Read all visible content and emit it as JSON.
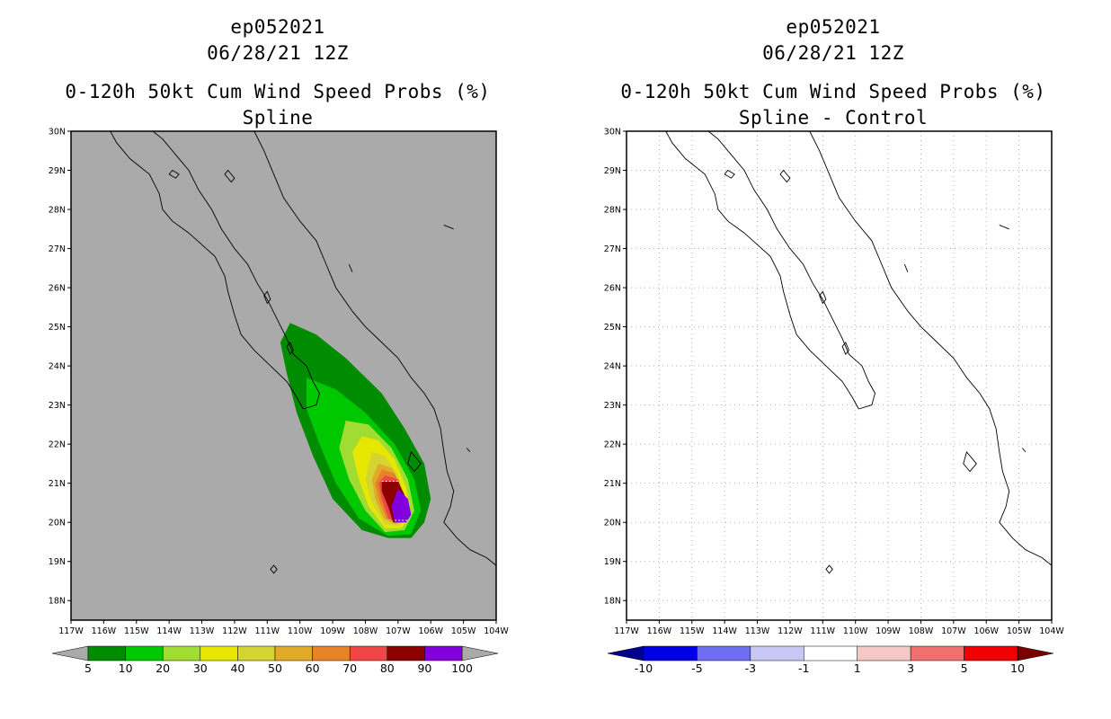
{
  "colors": {
    "land_sea_gray": "#aaaaaa",
    "plot_white": "#ffffff",
    "grid_dots": "#b0b0b0"
  },
  "panels": [
    {
      "id": "left",
      "storm_id": "ep052021",
      "datetime": "06/28/21 12Z",
      "product": "0-120h 50kt Cum Wind Speed Probs (%)",
      "subtitle": "Spline",
      "lat_labels": [
        "30N",
        "29N",
        "28N",
        "27N",
        "26N",
        "25N",
        "24N",
        "23N",
        "22N",
        "21N",
        "20N",
        "19N",
        "18N"
      ],
      "lon_labels": [
        "117W",
        "116W",
        "115W",
        "114W",
        "113W",
        "112W",
        "111W",
        "110W",
        "109W",
        "108W",
        "107W",
        "106W",
        "105W",
        "104W"
      ],
      "colorbar": {
        "labels": [
          "5",
          "10",
          "20",
          "30",
          "40",
          "50",
          "60",
          "70",
          "80",
          "90",
          "100"
        ],
        "colors": [
          "#008c00",
          "#00c800",
          "#a0dc32",
          "#e6e600",
          "#d4d432",
          "#e1aa28",
          "#e68228",
          "#f04646",
          "#8c0000",
          "#8200dc"
        ],
        "low_arrow_color": "#aaaaaa",
        "high_arrow_color": "#aaaaaa"
      }
    },
    {
      "id": "right",
      "storm_id": "ep052021",
      "datetime": "06/28/21 12Z",
      "product": "0-120h 50kt Cum Wind Speed Probs (%)",
      "subtitle": "Spline - Control",
      "lat_labels": [
        "30N",
        "29N",
        "28N",
        "27N",
        "26N",
        "25N",
        "24N",
        "23N",
        "22N",
        "21N",
        "20N",
        "19N",
        "18N"
      ],
      "lon_labels": [
        "117W",
        "116W",
        "115W",
        "114W",
        "113W",
        "112W",
        "111W",
        "110W",
        "109W",
        "108W",
        "107W",
        "106W",
        "105W",
        "104W"
      ],
      "colorbar": {
        "labels": [
          "-10",
          "-5",
          "-3",
          "-1",
          "1",
          "3",
          "5",
          "10"
        ],
        "colors": [
          "#0000e6",
          "#6e6ef0",
          "#c8c8f5",
          "#ffffff",
          "#f5c8c8",
          "#f07070",
          "#f00000"
        ],
        "low_arrow_color": "#00008c",
        "high_arrow_color": "#780000"
      }
    }
  ]
}
